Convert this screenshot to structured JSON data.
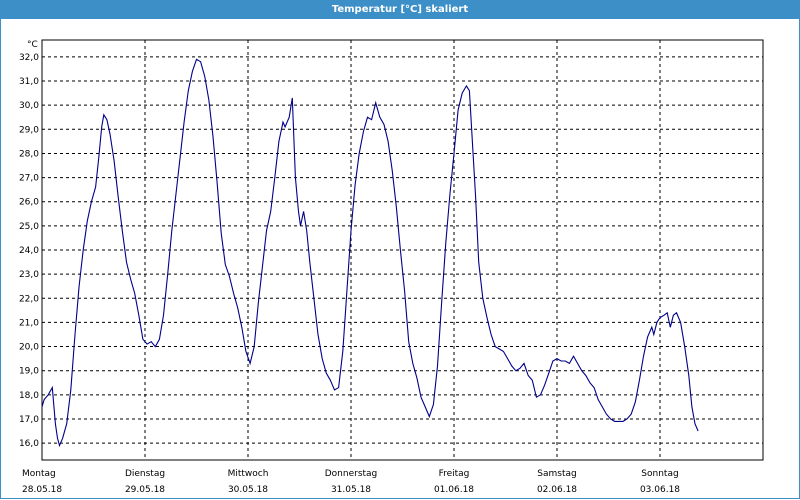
{
  "window": {
    "title": "Temperatur [°C] skaliert"
  },
  "chart_data": {
    "type": "line",
    "title": "Temperatur [°C] skaliert",
    "yunit": "°C",
    "ylim": [
      15.3,
      32.7
    ],
    "yticks": [
      16.0,
      17.0,
      18.0,
      19.0,
      20.0,
      21.0,
      22.0,
      23.0,
      24.0,
      25.0,
      26.0,
      27.0,
      28.0,
      29.0,
      30.0,
      31.0,
      32.0
    ],
    "grid": true,
    "xlim": [
      0,
      7
    ],
    "xticks": [
      {
        "day": "Montag",
        "date": "28.05.18"
      },
      {
        "day": "Dienstag",
        "date": "29.05.18"
      },
      {
        "day": "Mittwoch",
        "date": "30.05.18"
      },
      {
        "day": "Donnerstag",
        "date": "31.05.18"
      },
      {
        "day": "Freitag",
        "date": "01.06.18"
      },
      {
        "day": "Samstag",
        "date": "02.06.18"
      },
      {
        "day": "Sonntag",
        "date": "03.06.18"
      }
    ],
    "x_unit": "days since 28.05.18 00:00",
    "series": [
      {
        "color": "#00008b",
        "points": [
          [
            0.0,
            17.5
          ],
          [
            0.02,
            17.8
          ],
          [
            0.06,
            18.0
          ],
          [
            0.1,
            18.3
          ],
          [
            0.13,
            16.8
          ],
          [
            0.15,
            16.2
          ],
          [
            0.17,
            15.9
          ],
          [
            0.2,
            16.2
          ],
          [
            0.24,
            16.8
          ],
          [
            0.28,
            18.2
          ],
          [
            0.32,
            20.5
          ],
          [
            0.36,
            22.5
          ],
          [
            0.4,
            24.0
          ],
          [
            0.44,
            25.2
          ],
          [
            0.48,
            26.0
          ],
          [
            0.52,
            26.6
          ],
          [
            0.55,
            27.8
          ],
          [
            0.58,
            29.1
          ],
          [
            0.6,
            29.6
          ],
          [
            0.63,
            29.4
          ],
          [
            0.66,
            28.8
          ],
          [
            0.7,
            27.7
          ],
          [
            0.74,
            26.2
          ],
          [
            0.78,
            24.8
          ],
          [
            0.82,
            23.5
          ],
          [
            0.86,
            22.8
          ],
          [
            0.9,
            22.2
          ],
          [
            0.94,
            21.3
          ],
          [
            0.98,
            20.3
          ],
          [
            1.02,
            20.1
          ],
          [
            1.06,
            20.2
          ],
          [
            1.1,
            20.0
          ],
          [
            1.14,
            20.3
          ],
          [
            1.18,
            21.3
          ],
          [
            1.22,
            23.0
          ],
          [
            1.26,
            24.8
          ],
          [
            1.3,
            26.3
          ],
          [
            1.34,
            27.8
          ],
          [
            1.38,
            29.3
          ],
          [
            1.42,
            30.6
          ],
          [
            1.46,
            31.4
          ],
          [
            1.5,
            31.9
          ],
          [
            1.54,
            31.8
          ],
          [
            1.58,
            31.2
          ],
          [
            1.62,
            30.2
          ],
          [
            1.66,
            28.7
          ],
          [
            1.7,
            26.8
          ],
          [
            1.74,
            24.7
          ],
          [
            1.78,
            23.4
          ],
          [
            1.82,
            22.9
          ],
          [
            1.86,
            22.2
          ],
          [
            1.9,
            21.6
          ],
          [
            1.94,
            20.8
          ],
          [
            1.98,
            19.8
          ],
          [
            2.02,
            19.3
          ],
          [
            2.06,
            20.0
          ],
          [
            2.1,
            21.8
          ],
          [
            2.14,
            23.3
          ],
          [
            2.18,
            24.8
          ],
          [
            2.22,
            25.6
          ],
          [
            2.26,
            27.0
          ],
          [
            2.3,
            28.5
          ],
          [
            2.34,
            29.3
          ],
          [
            2.36,
            29.1
          ],
          [
            2.4,
            29.5
          ],
          [
            2.43,
            30.3
          ],
          [
            2.46,
            27.0
          ],
          [
            2.49,
            25.6
          ],
          [
            2.51,
            25.0
          ],
          [
            2.54,
            25.6
          ],
          [
            2.57,
            24.8
          ],
          [
            2.6,
            23.5
          ],
          [
            2.64,
            22.0
          ],
          [
            2.68,
            20.5
          ],
          [
            2.72,
            19.5
          ],
          [
            2.76,
            18.9
          ],
          [
            2.8,
            18.6
          ],
          [
            2.84,
            18.2
          ],
          [
            2.88,
            18.3
          ],
          [
            2.92,
            19.8
          ],
          [
            2.96,
            22.3
          ],
          [
            3.0,
            24.8
          ],
          [
            3.04,
            26.7
          ],
          [
            3.08,
            28.0
          ],
          [
            3.12,
            28.9
          ],
          [
            3.16,
            29.5
          ],
          [
            3.2,
            29.4
          ],
          [
            3.24,
            30.1
          ],
          [
            3.28,
            29.5
          ],
          [
            3.32,
            29.2
          ],
          [
            3.36,
            28.5
          ],
          [
            3.4,
            27.3
          ],
          [
            3.44,
            25.8
          ],
          [
            3.48,
            24.0
          ],
          [
            3.52,
            22.3
          ],
          [
            3.56,
            20.2
          ],
          [
            3.6,
            19.3
          ],
          [
            3.64,
            18.7
          ],
          [
            3.68,
            17.9
          ],
          [
            3.72,
            17.5
          ],
          [
            3.76,
            17.1
          ],
          [
            3.8,
            17.6
          ],
          [
            3.84,
            19.2
          ],
          [
            3.88,
            21.8
          ],
          [
            3.92,
            24.3
          ],
          [
            3.96,
            26.3
          ],
          [
            4.0,
            28.0
          ],
          [
            4.04,
            29.8
          ],
          [
            4.08,
            30.5
          ],
          [
            4.12,
            30.8
          ],
          [
            4.15,
            30.6
          ],
          [
            4.18,
            28.4
          ],
          [
            4.21,
            26.2
          ],
          [
            4.24,
            23.5
          ],
          [
            4.28,
            22.0
          ],
          [
            4.32,
            21.2
          ],
          [
            4.36,
            20.5
          ],
          [
            4.4,
            20.0
          ],
          [
            4.44,
            19.9
          ],
          [
            4.48,
            19.8
          ],
          [
            4.52,
            19.5
          ],
          [
            4.56,
            19.2
          ],
          [
            4.6,
            19.0
          ],
          [
            4.64,
            19.1
          ],
          [
            4.68,
            19.3
          ],
          [
            4.72,
            18.8
          ],
          [
            4.76,
            18.6
          ],
          [
            4.8,
            17.9
          ],
          [
            4.84,
            18.0
          ],
          [
            4.88,
            18.4
          ],
          [
            4.92,
            18.9
          ],
          [
            4.96,
            19.4
          ],
          [
            5.0,
            19.5
          ],
          [
            5.04,
            19.4
          ],
          [
            5.08,
            19.4
          ],
          [
            5.12,
            19.3
          ],
          [
            5.16,
            19.6
          ],
          [
            5.2,
            19.3
          ],
          [
            5.24,
            19.0
          ],
          [
            5.28,
            18.8
          ],
          [
            5.32,
            18.5
          ],
          [
            5.36,
            18.3
          ],
          [
            5.4,
            17.8
          ],
          [
            5.44,
            17.5
          ],
          [
            5.48,
            17.2
          ],
          [
            5.52,
            17.0
          ],
          [
            5.56,
            16.9
          ],
          [
            5.6,
            16.9
          ],
          [
            5.64,
            16.9
          ],
          [
            5.68,
            17.0
          ],
          [
            5.72,
            17.2
          ],
          [
            5.76,
            17.7
          ],
          [
            5.8,
            18.6
          ],
          [
            5.84,
            19.6
          ],
          [
            5.88,
            20.4
          ],
          [
            5.92,
            20.8
          ],
          [
            5.94,
            20.5
          ],
          [
            5.97,
            21.0
          ],
          [
            6.0,
            21.2
          ],
          [
            6.04,
            21.3
          ],
          [
            6.07,
            21.4
          ],
          [
            6.1,
            20.8
          ],
          [
            6.13,
            21.3
          ],
          [
            6.16,
            21.4
          ],
          [
            6.2,
            21.0
          ],
          [
            6.24,
            20.0
          ],
          [
            6.28,
            18.8
          ],
          [
            6.31,
            17.5
          ],
          [
            6.34,
            16.8
          ],
          [
            6.37,
            16.5
          ]
        ]
      }
    ]
  }
}
